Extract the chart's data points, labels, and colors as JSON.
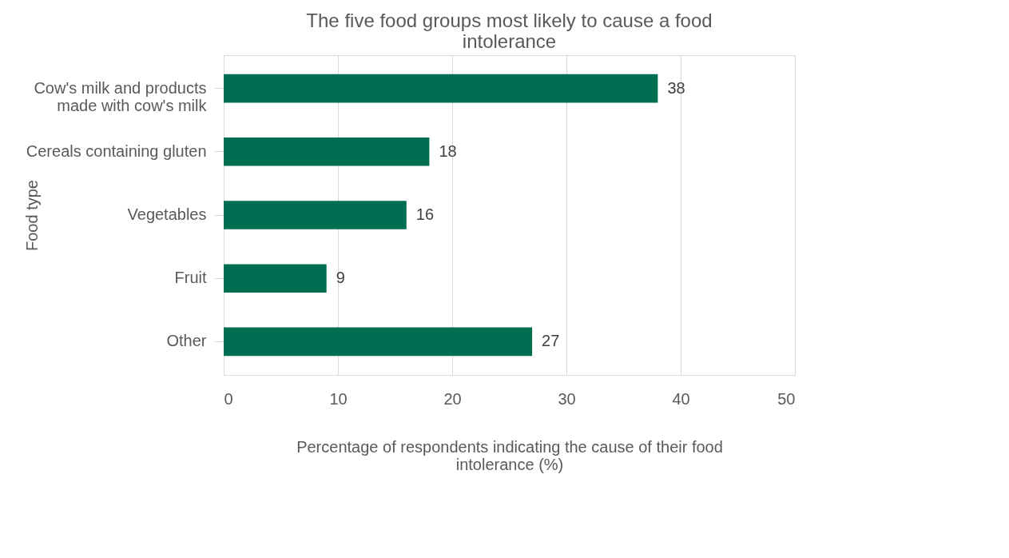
{
  "chart_data": {
    "type": "bar",
    "orientation": "horizontal",
    "title": "The five food groups most likely to cause a food intolerance",
    "xlabel": "Percentage of respondents indicating the cause of their food intolerance (%)",
    "ylabel": "Food type",
    "categories": [
      "Cow's milk and products made with cow's milk",
      "Cereals containing gluten",
      "Vegetables",
      "Fruit",
      "Other"
    ],
    "values": [
      38,
      18,
      16,
      9,
      27
    ],
    "color": "#006e51",
    "xlim": [
      0,
      50
    ],
    "xticks": [
      0,
      10,
      20,
      30,
      40,
      50
    ],
    "grid": "x",
    "data_labels": true
  }
}
